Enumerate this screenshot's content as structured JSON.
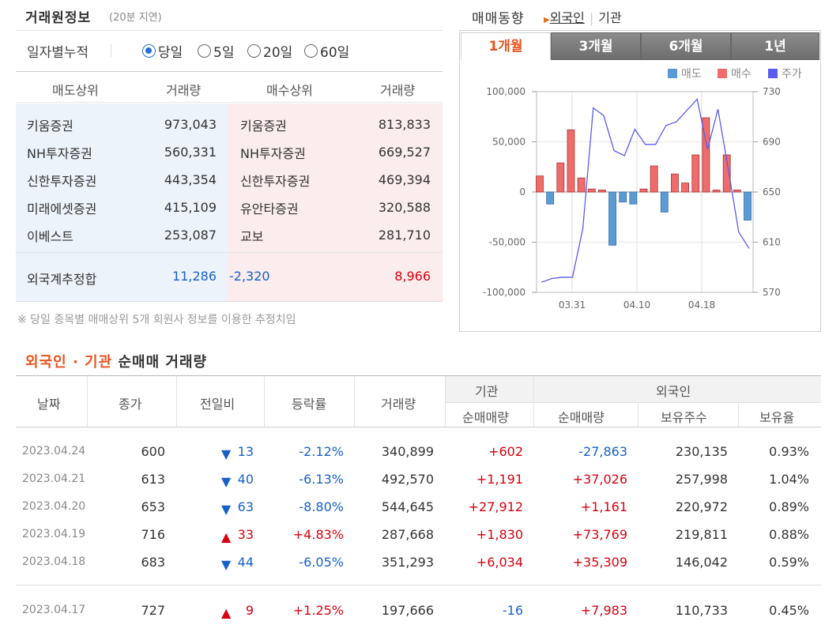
{
  "trade_info": {
    "title": "거래원정보",
    "delay": "(20분 지연)",
    "period_label": "일자별누적",
    "periods": [
      "당일",
      "5일",
      "20일",
      "60일"
    ],
    "selected_period": "당일",
    "headers": {
      "sell_top": "매도상위",
      "sell_volume": "거래량",
      "buy_top": "매수상위",
      "buy_volume": "거래량"
    },
    "rows": [
      {
        "sell_name": "키움증권",
        "sell_volume": "973,043",
        "buy_name": "키움증권",
        "buy_volume": "813,833"
      },
      {
        "sell_name": "NH투자증권",
        "sell_volume": "560,331",
        "buy_name": "NH투자증권",
        "buy_volume": "669,527"
      },
      {
        "sell_name": "신한투자증권",
        "sell_volume": "443,354",
        "buy_name": "신한투자증권",
        "buy_volume": "469,394"
      },
      {
        "sell_name": "미래에셋증권",
        "sell_volume": "415,109",
        "buy_name": "유안타증권",
        "buy_volume": "320,588"
      },
      {
        "sell_name": "이베스트",
        "sell_volume": "253,087",
        "buy_name": "교보",
        "buy_volume": "281,710"
      }
    ],
    "foreign": {
      "label": "외국계추정합",
      "sell": "11,286",
      "net": "-2,320",
      "buy": "8,966"
    },
    "note": "※ 당일 종목별 매매상위 5개 회원사 정보를 이용한 추정치임"
  },
  "trade_trend": {
    "title": "매매동향",
    "links": [
      "외국인",
      "기관"
    ],
    "tabs": [
      "1개월",
      "3개월",
      "6개월",
      "1년"
    ],
    "active_tab": "1개월",
    "legend": [
      "매도",
      "매수",
      "주가"
    ]
  },
  "colors": {
    "sell": "#5b9bd5",
    "buy": "#ef6c6c",
    "price": "#5a5cf0",
    "up": "#d7000f",
    "down": "#1760c6",
    "accent": "#e8521d"
  },
  "chart_data": {
    "type": "bar",
    "x_ticks": [
      "03.31",
      "04.10",
      "04.18"
    ],
    "y_left_ticks": [
      "100,000",
      "50,000",
      "0",
      "-50,000",
      "-100,000"
    ],
    "y_right_ticks": [
      "730",
      "690",
      "650",
      "610",
      "570"
    ],
    "ylim_left": [
      -100000,
      100000
    ],
    "ylim_right": [
      570,
      730
    ],
    "legend_position": "top-right",
    "series": [
      {
        "name": "매도",
        "values": [
          0,
          -12000,
          0,
          0,
          0,
          0,
          0,
          -53000,
          -10000,
          -12000,
          0,
          0,
          -20000,
          0,
          0,
          0,
          0,
          0,
          0,
          0,
          -28000
        ]
      },
      {
        "name": "매수",
        "values": [
          16000,
          0,
          29000,
          62000,
          14000,
          3000,
          2000,
          0,
          0,
          0,
          3000,
          26000,
          0,
          18000,
          9000,
          37000,
          74000,
          2000,
          37000,
          2000,
          0
        ]
      },
      {
        "name": "주가",
        "values": [
          578,
          581,
          582,
          582,
          621,
          717,
          711,
          683,
          679,
          700,
          688,
          688,
          703,
          706,
          715,
          724,
          684,
          716,
          668,
          618,
          605
        ]
      }
    ]
  },
  "net_trade": {
    "title_highlight": "외국인 · 기관",
    "title_rest": "순매매 거래량",
    "headers": {
      "date": "날짜",
      "close": "종가",
      "change": "전일비",
      "rate": "등락률",
      "volume": "거래량",
      "inst_group": "기관",
      "inst_net": "순매매량",
      "foreign_group": "외국인",
      "foreign_net": "순매매량",
      "holding": "보유주수",
      "ratio": "보유율"
    },
    "rows": [
      {
        "date": "2023.04.24",
        "close": "600",
        "dir": "down",
        "change": "13",
        "rate": "-2.12%",
        "volume": "340,899",
        "inst": "+602",
        "foreign": "-27,863",
        "holding": "230,135",
        "ratio": "0.93%"
      },
      {
        "date": "2023.04.21",
        "close": "613",
        "dir": "down",
        "change": "40",
        "rate": "-6.13%",
        "volume": "492,570",
        "inst": "+1,191",
        "foreign": "+37,026",
        "holding": "257,998",
        "ratio": "1.04%"
      },
      {
        "date": "2023.04.20",
        "close": "653",
        "dir": "down",
        "change": "63",
        "rate": "-8.80%",
        "volume": "544,645",
        "inst": "+27,912",
        "foreign": "+1,161",
        "holding": "220,972",
        "ratio": "0.89%"
      },
      {
        "date": "2023.04.19",
        "close": "716",
        "dir": "up",
        "change": "33",
        "rate": "+4.83%",
        "volume": "287,668",
        "inst": "+1,830",
        "foreign": "+73,769",
        "holding": "219,811",
        "ratio": "0.88%"
      },
      {
        "date": "2023.04.18",
        "close": "683",
        "dir": "down",
        "change": "44",
        "rate": "-6.05%",
        "volume": "351,293",
        "inst": "+6,034",
        "foreign": "+35,309",
        "holding": "146,042",
        "ratio": "0.59%"
      },
      {
        "date": "2023.04.17",
        "close": "727",
        "dir": "up",
        "change": "9",
        "rate": "+1.25%",
        "volume": "197,666",
        "inst": "-16",
        "foreign": "+7,983",
        "holding": "110,733",
        "ratio": "0.45%"
      }
    ]
  }
}
